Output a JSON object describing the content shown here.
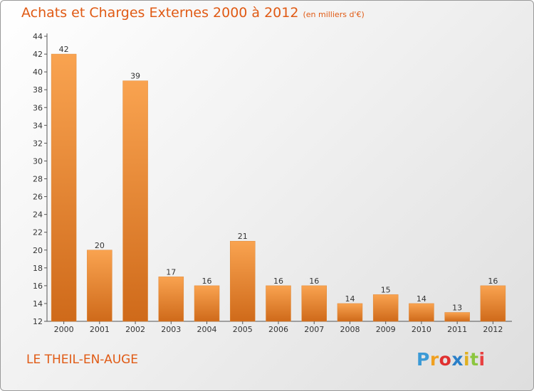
{
  "chart_data": {
    "type": "bar",
    "title": "Achats et Charges Externes 2000 à 2012",
    "subtitle": "(en milliers d'€)",
    "categories": [
      "2000",
      "2001",
      "2002",
      "2003",
      "2004",
      "2005",
      "2006",
      "2007",
      "2008",
      "2009",
      "2010",
      "2011",
      "2012"
    ],
    "values": [
      42,
      20,
      39,
      17,
      16,
      21,
      16,
      16,
      14,
      15,
      14,
      13,
      16
    ],
    "ylim": [
      12,
      44
    ],
    "yticks": [
      12,
      14,
      16,
      18,
      20,
      22,
      24,
      26,
      28,
      30,
      32,
      34,
      36,
      38,
      40,
      42,
      44
    ],
    "grid": false,
    "xlabel": "",
    "ylabel": ""
  },
  "commune": "LE THEIL-EN-AUGE",
  "logo": {
    "letters": [
      "P",
      "r",
      "o",
      "x",
      "i",
      "t",
      "i"
    ],
    "colors": [
      "#3b9ad6",
      "#f0a020",
      "#e03030",
      "#2a7fc8",
      "#e0b020",
      "#8cc63f",
      "#e84040"
    ]
  },
  "colors": {
    "title": "#e05a14",
    "bar_light": "#f9a350",
    "bar_dark": "#cf6a1a"
  }
}
